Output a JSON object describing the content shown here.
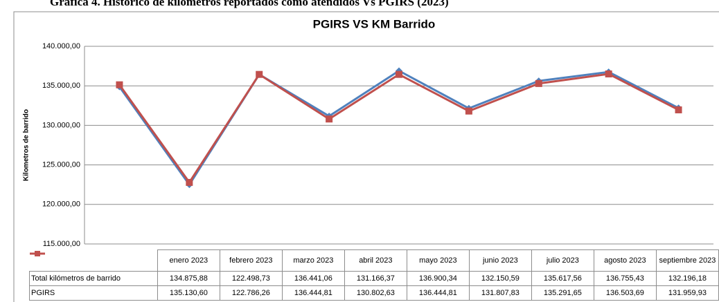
{
  "chart_data": {
    "type": "line",
    "caption": "Gráfica 4. Histórico de kilómetros reportados como atendidos Vs PGIRS (2023)",
    "title": "PGIRS VS KM Barrido",
    "y_label": "Kilometros de barrido",
    "categories": [
      "enero 2023",
      "febrero 2023",
      "marzo 2023",
      "abril 2023",
      "mayo 2023",
      "junio 2023",
      "julio 2023",
      "agosto 2023",
      "septiembre 2023"
    ],
    "series": [
      {
        "name": "Total kilómetros de barrido",
        "color": "#4f81bd",
        "marker": "diamond",
        "values": [
          134875.88,
          122498.73,
          136441.06,
          131166.37,
          136900.34,
          132150.59,
          135617.56,
          136755.43,
          132196.18
        ],
        "value_labels": [
          "134.875,88",
          "122.498,73",
          "136.441,06",
          "131.166,37",
          "136.900,34",
          "132.150,59",
          "135.617,56",
          "136.755,43",
          "132.196,18"
        ]
      },
      {
        "name": "PGIRS",
        "color": "#c0504d",
        "marker": "square",
        "values": [
          135130.6,
          122786.26,
          136444.81,
          130802.63,
          136444.81,
          131807.83,
          135291.65,
          136503.69,
          131959.93
        ],
        "value_labels": [
          "135.130,60",
          "122.786,26",
          "136.444,81",
          "130.802,63",
          "136.444,81",
          "131.807,83",
          "135.291,65",
          "136.503,69",
          "131.959,93"
        ]
      }
    ],
    "ylim": [
      115000,
      140000
    ],
    "yticks": [
      {
        "value": 115000,
        "label": "115.000,00"
      },
      {
        "value": 120000,
        "label": "120.000,00"
      },
      {
        "value": 125000,
        "label": "125.000,00"
      },
      {
        "value": 130000,
        "label": "130.000,00"
      },
      {
        "value": 135000,
        "label": "135.000,00"
      },
      {
        "value": 140000,
        "label": "140.000,00"
      }
    ],
    "grid": true
  }
}
